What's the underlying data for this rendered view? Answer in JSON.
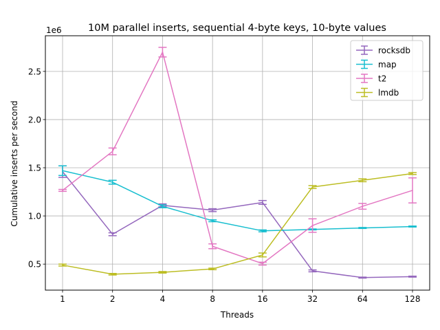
{
  "chart_data": {
    "type": "line",
    "title": "10M parallel inserts, sequential 4-byte keys, 10-byte values",
    "xlabel": "Threads",
    "ylabel": "Cumulative inserts per second",
    "y_offset_label": "1e6",
    "categories": [
      "1",
      "2",
      "4",
      "8",
      "16",
      "32",
      "64",
      "128"
    ],
    "ylim": [
      230000,
      2870000
    ],
    "yticks": [
      500000,
      1000000,
      1500000,
      2000000,
      2500000
    ],
    "ytick_labels": [
      "0.5",
      "1.0",
      "1.5",
      "2.0",
      "2.5"
    ],
    "grid": true,
    "legend_position": "top-right",
    "error_bars": true,
    "series": [
      {
        "name": "rocksdb",
        "color": "#9467bd",
        "values": [
          1460000,
          810000,
          1110000,
          1060000,
          1140000,
          430000,
          360000,
          370000
        ],
        "errors": [
          60000,
          15000,
          15000,
          15000,
          20000,
          10000,
          5000,
          5000
        ]
      },
      {
        "name": "map",
        "color": "#17becf",
        "values": [
          1470000,
          1350000,
          1100000,
          950000,
          845000,
          860000,
          875000,
          890000
        ],
        "errors": [
          50000,
          20000,
          15000,
          10000,
          10000,
          5000,
          5000,
          5000
        ]
      },
      {
        "name": "t2",
        "color": "#e377c2",
        "values": [
          1265000,
          1670000,
          2700000,
          685000,
          505000,
          900000,
          1100000,
          1265000
        ],
        "errors": [
          10000,
          35000,
          50000,
          25000,
          15000,
          70000,
          30000,
          130000
        ]
      },
      {
        "name": "lmdb",
        "color": "#bcbd22",
        "values": [
          490000,
          395000,
          415000,
          450000,
          595000,
          1300000,
          1370000,
          1440000
        ],
        "errors": [
          10000,
          8000,
          8000,
          8000,
          20000,
          15000,
          15000,
          10000
        ]
      }
    ]
  }
}
